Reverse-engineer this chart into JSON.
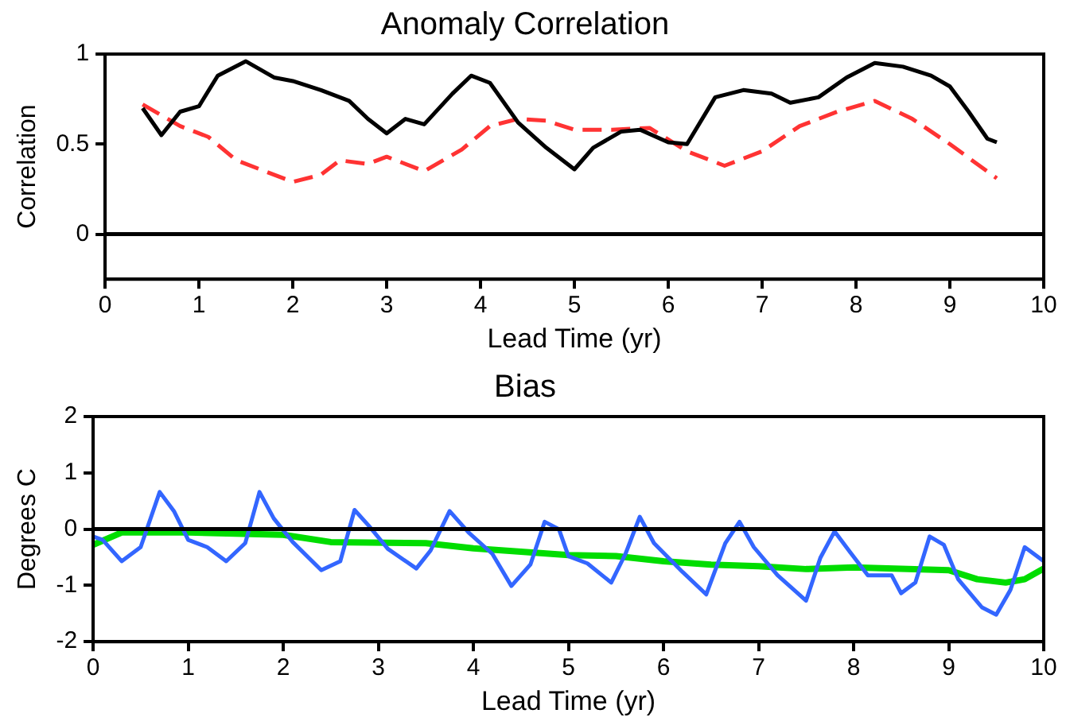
{
  "chart_data": [
    {
      "type": "line",
      "title": "Anomaly Correlation",
      "xlabel": "Lead Time (yr)",
      "ylabel": "Correlation",
      "xlim": [
        0,
        10
      ],
      "xticks": [
        0,
        1,
        2,
        3,
        4,
        5,
        6,
        7,
        8,
        9,
        10
      ],
      "ylim": [
        -0.25,
        1
      ],
      "yticks": [
        0,
        0.5,
        1
      ],
      "grid": false,
      "legend": false,
      "marker": "none",
      "ref_lines": [
        {
          "axis": "y",
          "value": 0,
          "color": "#000000"
        }
      ],
      "series": [
        {
          "color": "#000000",
          "line_style": "solid",
          "x": [
            0.4,
            0.6,
            0.8,
            1.0,
            1.2,
            1.5,
            1.8,
            2.0,
            2.3,
            2.6,
            2.8,
            3.0,
            3.2,
            3.4,
            3.7,
            3.9,
            4.1,
            4.4,
            4.7,
            5.0,
            5.2,
            5.5,
            5.7,
            6.0,
            6.2,
            6.5,
            6.8,
            7.1,
            7.3,
            7.6,
            7.9,
            8.2,
            8.5,
            8.8,
            9.0,
            9.2,
            9.4,
            9.5
          ],
          "values": [
            0.7,
            0.55,
            0.68,
            0.71,
            0.88,
            0.96,
            0.87,
            0.85,
            0.8,
            0.74,
            0.64,
            0.56,
            0.64,
            0.61,
            0.78,
            0.88,
            0.84,
            0.62,
            0.48,
            0.36,
            0.48,
            0.57,
            0.58,
            0.51,
            0.5,
            0.76,
            0.8,
            0.78,
            0.73,
            0.76,
            0.87,
            0.95,
            0.93,
            0.88,
            0.82,
            0.68,
            0.53,
            0.51
          ]
        },
        {
          "color": "#ff3333",
          "line_style": "dashed",
          "x": [
            0.4,
            0.8,
            1.1,
            1.4,
            1.7,
            2.0,
            2.3,
            2.5,
            2.8,
            3.0,
            3.4,
            3.8,
            4.1,
            4.4,
            4.7,
            5.0,
            5.4,
            5.8,
            6.2,
            6.6,
            7.0,
            7.4,
            7.8,
            8.2,
            8.6,
            9.0,
            9.5
          ],
          "values": [
            0.72,
            0.6,
            0.54,
            0.41,
            0.35,
            0.29,
            0.33,
            0.41,
            0.39,
            0.43,
            0.35,
            0.47,
            0.6,
            0.64,
            0.63,
            0.58,
            0.58,
            0.59,
            0.46,
            0.38,
            0.46,
            0.6,
            0.68,
            0.74,
            0.64,
            0.5,
            0.31
          ]
        }
      ]
    },
    {
      "type": "line",
      "title": "Bias",
      "xlabel": "Lead Time (yr)",
      "ylabel": "Degrees C",
      "xlim": [
        0,
        10
      ],
      "xticks": [
        0,
        1,
        2,
        3,
        4,
        5,
        6,
        7,
        8,
        9,
        10
      ],
      "ylim": [
        -2,
        2
      ],
      "yticks": [
        -2,
        -1,
        0,
        1,
        2
      ],
      "grid": false,
      "legend": false,
      "marker": "none",
      "ref_lines": [
        {
          "axis": "y",
          "value": 0,
          "color": "#000000"
        }
      ],
      "series": [
        {
          "color": "#3366ff",
          "line_style": "solid",
          "x": [
            0,
            0.1,
            0.3,
            0.5,
            0.7,
            0.85,
            1.0,
            1.2,
            1.4,
            1.6,
            1.75,
            1.9,
            2.1,
            2.4,
            2.6,
            2.75,
            2.9,
            3.1,
            3.4,
            3.55,
            3.75,
            3.95,
            4.2,
            4.4,
            4.6,
            4.75,
            4.9,
            5.0,
            5.2,
            5.45,
            5.6,
            5.75,
            5.9,
            6.2,
            6.45,
            6.65,
            6.8,
            6.95,
            7.2,
            7.5,
            7.65,
            7.8,
            7.95,
            8.15,
            8.4,
            8.5,
            8.65,
            8.8,
            8.95,
            9.1,
            9.35,
            9.5,
            9.65,
            9.8,
            10
          ],
          "values": [
            -0.13,
            -0.19,
            -0.57,
            -0.32,
            0.66,
            0.32,
            -0.19,
            -0.32,
            -0.57,
            -0.25,
            0.66,
            0.19,
            -0.23,
            -0.73,
            -0.57,
            0.34,
            0.06,
            -0.35,
            -0.7,
            -0.38,
            0.32,
            -0.06,
            -0.44,
            -1.01,
            -0.63,
            0.13,
            0,
            -0.48,
            -0.61,
            -0.95,
            -0.44,
            0.22,
            -0.25,
            -0.76,
            -1.16,
            -0.25,
            0.13,
            -0.32,
            -0.82,
            -1.27,
            -0.51,
            -0.04,
            -0.38,
            -0.82,
            -0.82,
            -1.14,
            -0.95,
            -0.13,
            -0.28,
            -0.89,
            -1.39,
            -1.52,
            -1.08,
            -0.32,
            -0.57
          ]
        },
        {
          "color": "#00dd00",
          "line_style": "solid",
          "x": [
            0,
            0.3,
            1,
            2,
            2.5,
            3.5,
            4,
            5,
            5.5,
            6,
            6.5,
            7,
            7.5,
            8,
            9,
            9.3,
            9.6,
            9.8,
            10
          ],
          "values": [
            -0.28,
            -0.06,
            -0.06,
            -0.1,
            -0.23,
            -0.25,
            -0.34,
            -0.46,
            -0.48,
            -0.57,
            -0.63,
            -0.66,
            -0.71,
            -0.68,
            -0.73,
            -0.89,
            -0.95,
            -0.89,
            -0.7
          ]
        }
      ]
    }
  ]
}
